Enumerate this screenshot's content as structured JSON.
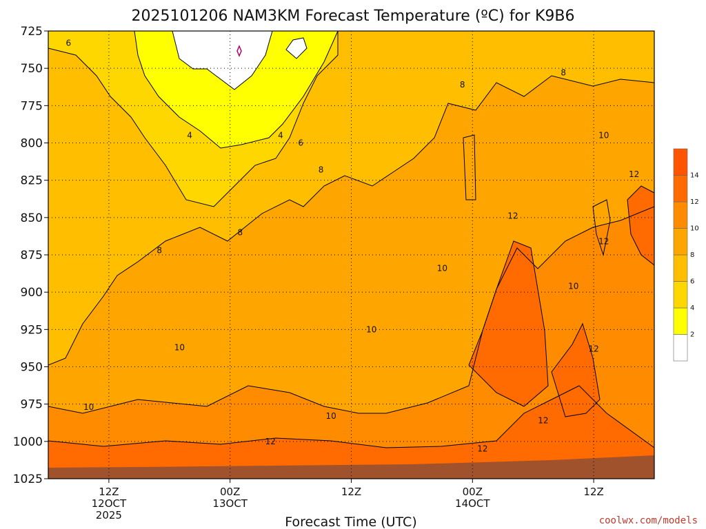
{
  "chart_data": {
    "type": "heatmap",
    "title": "2025101206 NAM3KM Forecast Temperature (ºC) for K9B6",
    "xlabel": "Forecast Time (UTC)",
    "ylabel": "",
    "y_axis": {
      "scale": "pressure-inverted",
      "range": [
        725,
        1025
      ],
      "ticks": [
        "725",
        "750",
        "775",
        "800",
        "825",
        "850",
        "875",
        "900",
        "925",
        "950",
        "975",
        "1000",
        "1025"
      ]
    },
    "x_axis": {
      "range_hours": [
        0,
        60
      ],
      "ticks": [
        {
          "hour": 6,
          "line1": "12Z",
          "line2": "12OCT",
          "line3": "2025"
        },
        {
          "hour": 18,
          "line1": "00Z",
          "line2": "13OCT",
          "line3": ""
        },
        {
          "hour": 30,
          "line1": "12Z",
          "line2": "",
          "line3": ""
        },
        {
          "hour": 42,
          "line1": "00Z",
          "line2": "14OCT",
          "line3": ""
        },
        {
          "hour": 54,
          "line1": "12Z",
          "line2": "",
          "line3": ""
        }
      ]
    },
    "grid": true,
    "colorbar": {
      "placement": "right",
      "levels": [
        0,
        2,
        4,
        6,
        8,
        10,
        12,
        14,
        16
      ],
      "tick_labels": [
        "2",
        "4",
        "6",
        "8",
        "10",
        "12",
        "14"
      ],
      "colors": [
        "#ffffff",
        "#ffff00",
        "#ffd700",
        "#ffbf00",
        "#ffa500",
        "#ff8c00",
        "#ff6b00",
        "#ff5500"
      ]
    },
    "contour_labels": [
      {
        "text": "6",
        "x": 2,
        "p": 733
      },
      {
        "text": "4",
        "x": 14,
        "p": 795
      },
      {
        "text": "4",
        "x": 23,
        "p": 795
      },
      {
        "text": "6",
        "x": 25,
        "p": 800
      },
      {
        "text": "8",
        "x": 27,
        "p": 818
      },
      {
        "text": "8",
        "x": 11,
        "p": 872
      },
      {
        "text": "8",
        "x": 19,
        "p": 860
      },
      {
        "text": "8",
        "x": 41,
        "p": 761
      },
      {
        "text": "8",
        "x": 51,
        "p": 753
      },
      {
        "text": "10",
        "x": 55,
        "p": 795
      },
      {
        "text": "12",
        "x": 58,
        "p": 821
      },
      {
        "text": "12",
        "x": 46,
        "p": 849
      },
      {
        "text": "12",
        "x": 55,
        "p": 866
      },
      {
        "text": "10",
        "x": 39,
        "p": 884
      },
      {
        "text": "10",
        "x": 52,
        "p": 896
      },
      {
        "text": "10",
        "x": 32,
        "p": 925
      },
      {
        "text": "10",
        "x": 13,
        "p": 937
      },
      {
        "text": "12",
        "x": 54,
        "p": 938
      },
      {
        "text": "10",
        "x": 4,
        "p": 977
      },
      {
        "text": "10",
        "x": 28,
        "p": 983
      },
      {
        "text": "12",
        "x": 49,
        "p": 986
      },
      {
        "text": "12",
        "x": 22,
        "p": 1000
      },
      {
        "text": "12",
        "x": 43,
        "p": 1005
      }
    ]
  },
  "credit": "coolwx.com/models"
}
